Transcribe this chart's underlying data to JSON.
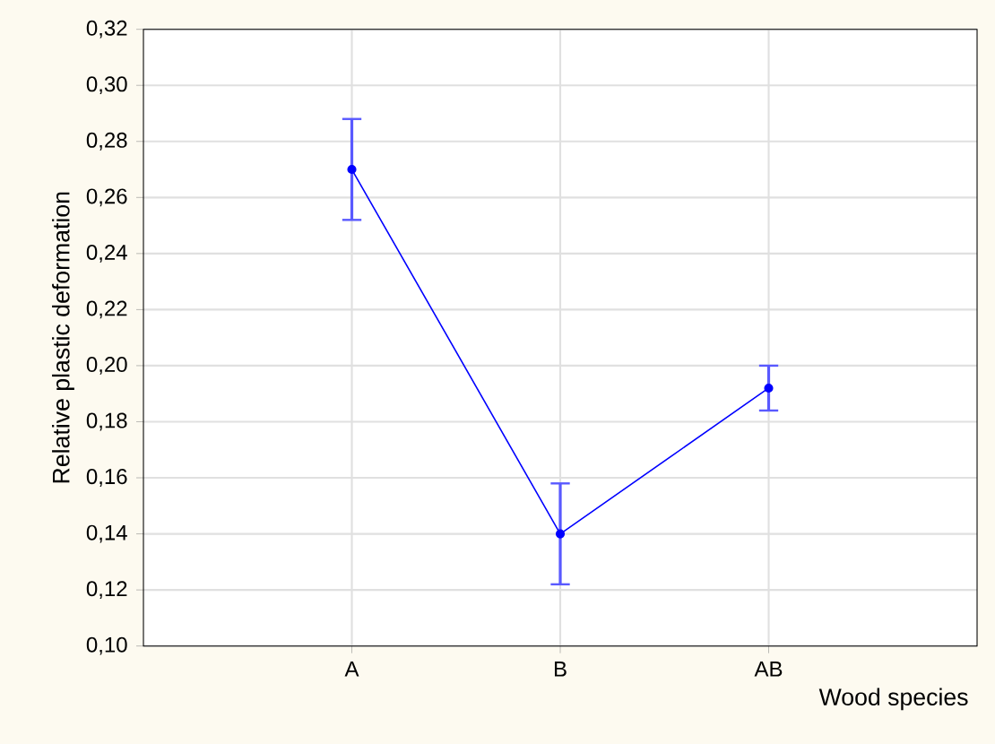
{
  "chart_data": {
    "type": "line",
    "xlabel": "Wood species",
    "ylabel": "Relative plastic deformation",
    "categories": [
      "A",
      "B",
      "AB"
    ],
    "series": [
      {
        "color": "#0000ff",
        "values": [
          0.27,
          0.14,
          0.192
        ],
        "errors": [
          0.018,
          0.018,
          0.008
        ]
      }
    ],
    "ylim": [
      0.1,
      0.32
    ],
    "yticks": [
      {
        "value": 0.1,
        "label": "0,10"
      },
      {
        "value": 0.12,
        "label": "0,12"
      },
      {
        "value": 0.14,
        "label": "0,14"
      },
      {
        "value": 0.16,
        "label": "0,16"
      },
      {
        "value": 0.18,
        "label": "0,18"
      },
      {
        "value": 0.2,
        "label": "0,20"
      },
      {
        "value": 0.22,
        "label": "0,22"
      },
      {
        "value": 0.24,
        "label": "0,24"
      },
      {
        "value": 0.26,
        "label": "0,26"
      },
      {
        "value": 0.28,
        "label": "0,28"
      },
      {
        "value": 0.3,
        "label": "0,30"
      },
      {
        "value": 0.32,
        "label": "0,32"
      }
    ],
    "grid": true,
    "marker": "circle",
    "line_style": "solid"
  }
}
